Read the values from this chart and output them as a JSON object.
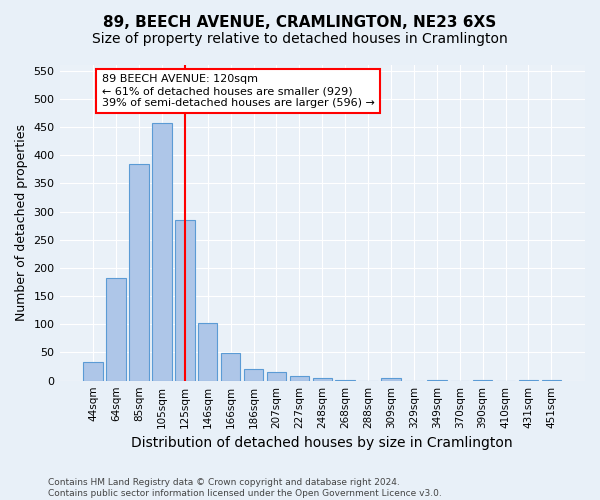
{
  "title": "89, BEECH AVENUE, CRAMLINGTON, NE23 6XS",
  "subtitle": "Size of property relative to detached houses in Cramlington",
  "xlabel": "Distribution of detached houses by size in Cramlington",
  "ylabel": "Number of detached properties",
  "categories": [
    "44sqm",
    "64sqm",
    "85sqm",
    "105sqm",
    "125sqm",
    "146sqm",
    "166sqm",
    "186sqm",
    "207sqm",
    "227sqm",
    "248sqm",
    "268sqm",
    "288sqm",
    "309sqm",
    "329sqm",
    "349sqm",
    "370sqm",
    "390sqm",
    "410sqm",
    "431sqm",
    "451sqm"
  ],
  "values": [
    33,
    182,
    384,
    457,
    285,
    103,
    49,
    20,
    16,
    9,
    4,
    2,
    0,
    5,
    0,
    1,
    0,
    1,
    0,
    1,
    2
  ],
  "bar_color": "#aec6e8",
  "bar_edge_color": "#5b9bd5",
  "annotation_text": "89 BEECH AVENUE: 120sqm\n← 61% of detached houses are smaller (929)\n39% of semi-detached houses are larger (596) →",
  "annotation_box_color": "white",
  "annotation_box_edge_color": "red",
  "red_line_x": 4.0,
  "ylim": [
    0,
    560
  ],
  "yticks": [
    0,
    50,
    100,
    150,
    200,
    250,
    300,
    350,
    400,
    450,
    500,
    550
  ],
  "bg_color": "#e8f0f8",
  "plot_bg_color": "#eaf1f8",
  "footer": "Contains HM Land Registry data © Crown copyright and database right 2024.\nContains public sector information licensed under the Open Government Licence v3.0.",
  "title_fontsize": 11,
  "subtitle_fontsize": 10,
  "xlabel_fontsize": 10,
  "ylabel_fontsize": 9
}
